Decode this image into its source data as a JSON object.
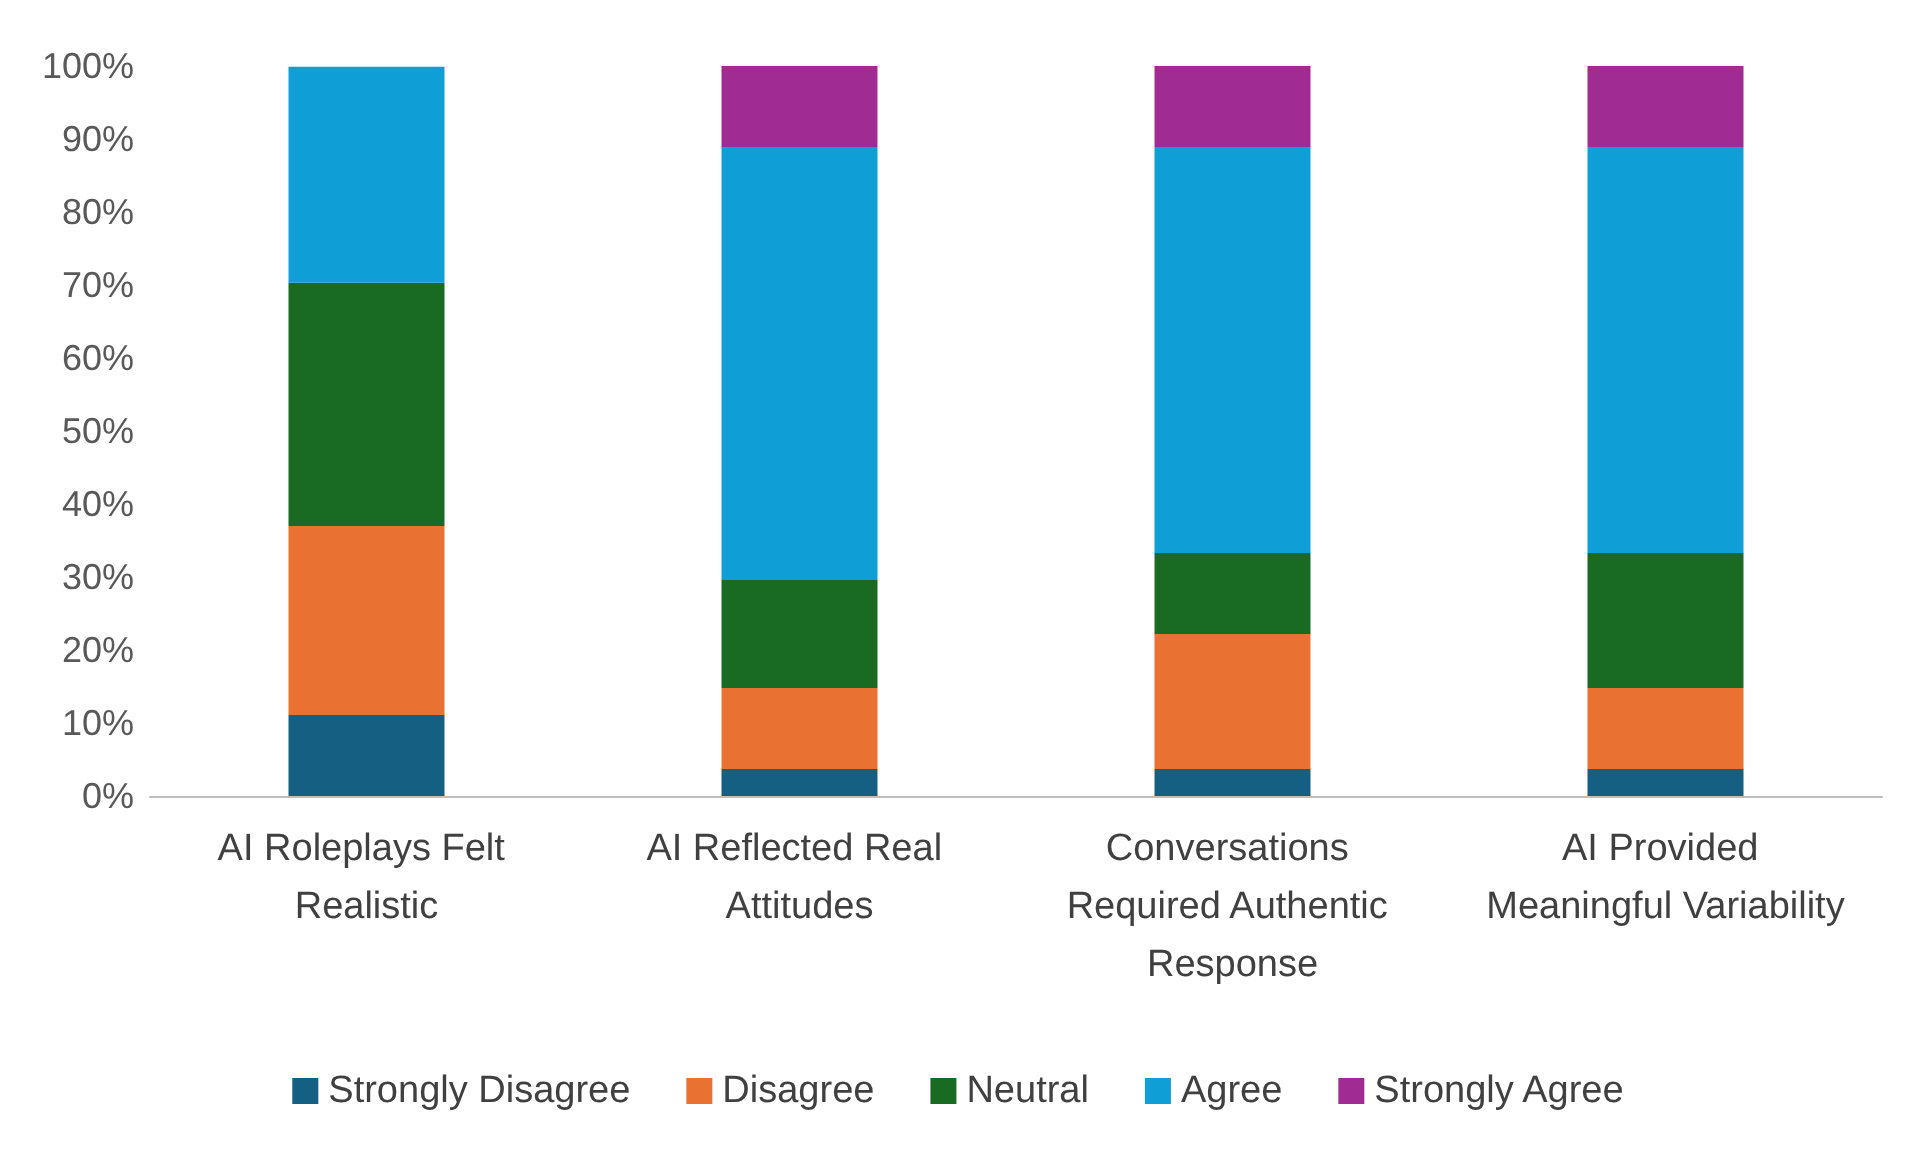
{
  "chart_data": {
    "type": "bar",
    "stacked": true,
    "categories": [
      "AI Roleplays Felt Realistic",
      "AI Reflected Real Attitudes",
      "Conversations Required Authentic Response",
      "AI Provided Meaningful Variability"
    ],
    "series": [
      {
        "name": "Strongly Disagree",
        "color": "#156082",
        "values": [
          11.1,
          3.7,
          3.7,
          3.7
        ]
      },
      {
        "name": "Disagree",
        "color": "#e97132",
        "values": [
          25.9,
          11.1,
          18.5,
          11.1
        ]
      },
      {
        "name": "Neutral",
        "color": "#196b24",
        "values": [
          33.3,
          14.8,
          11.1,
          18.5
        ]
      },
      {
        "name": "Agree",
        "color": "#0f9ed5",
        "values": [
          29.6,
          59.3,
          55.6,
          55.6
        ]
      },
      {
        "name": "Strongly Agree",
        "color": "#a02b93",
        "values": [
          0,
          11.1,
          11.1,
          11.1
        ]
      }
    ],
    "ylim": [
      0,
      100
    ],
    "yticks": [
      {
        "value": 0,
        "label": "0%"
      },
      {
        "value": 10,
        "label": "10%"
      },
      {
        "value": 20,
        "label": "20%"
      },
      {
        "value": 30,
        "label": "30%"
      },
      {
        "value": 40,
        "label": "40%"
      },
      {
        "value": 50,
        "label": "50%"
      },
      {
        "value": 60,
        "label": "60%"
      },
      {
        "value": 70,
        "label": "70%"
      },
      {
        "value": 80,
        "label": "80%"
      },
      {
        "value": 90,
        "label": "90%"
      },
      {
        "value": 100,
        "label": "100%"
      }
    ],
    "grid": false,
    "legend": "bottom"
  }
}
